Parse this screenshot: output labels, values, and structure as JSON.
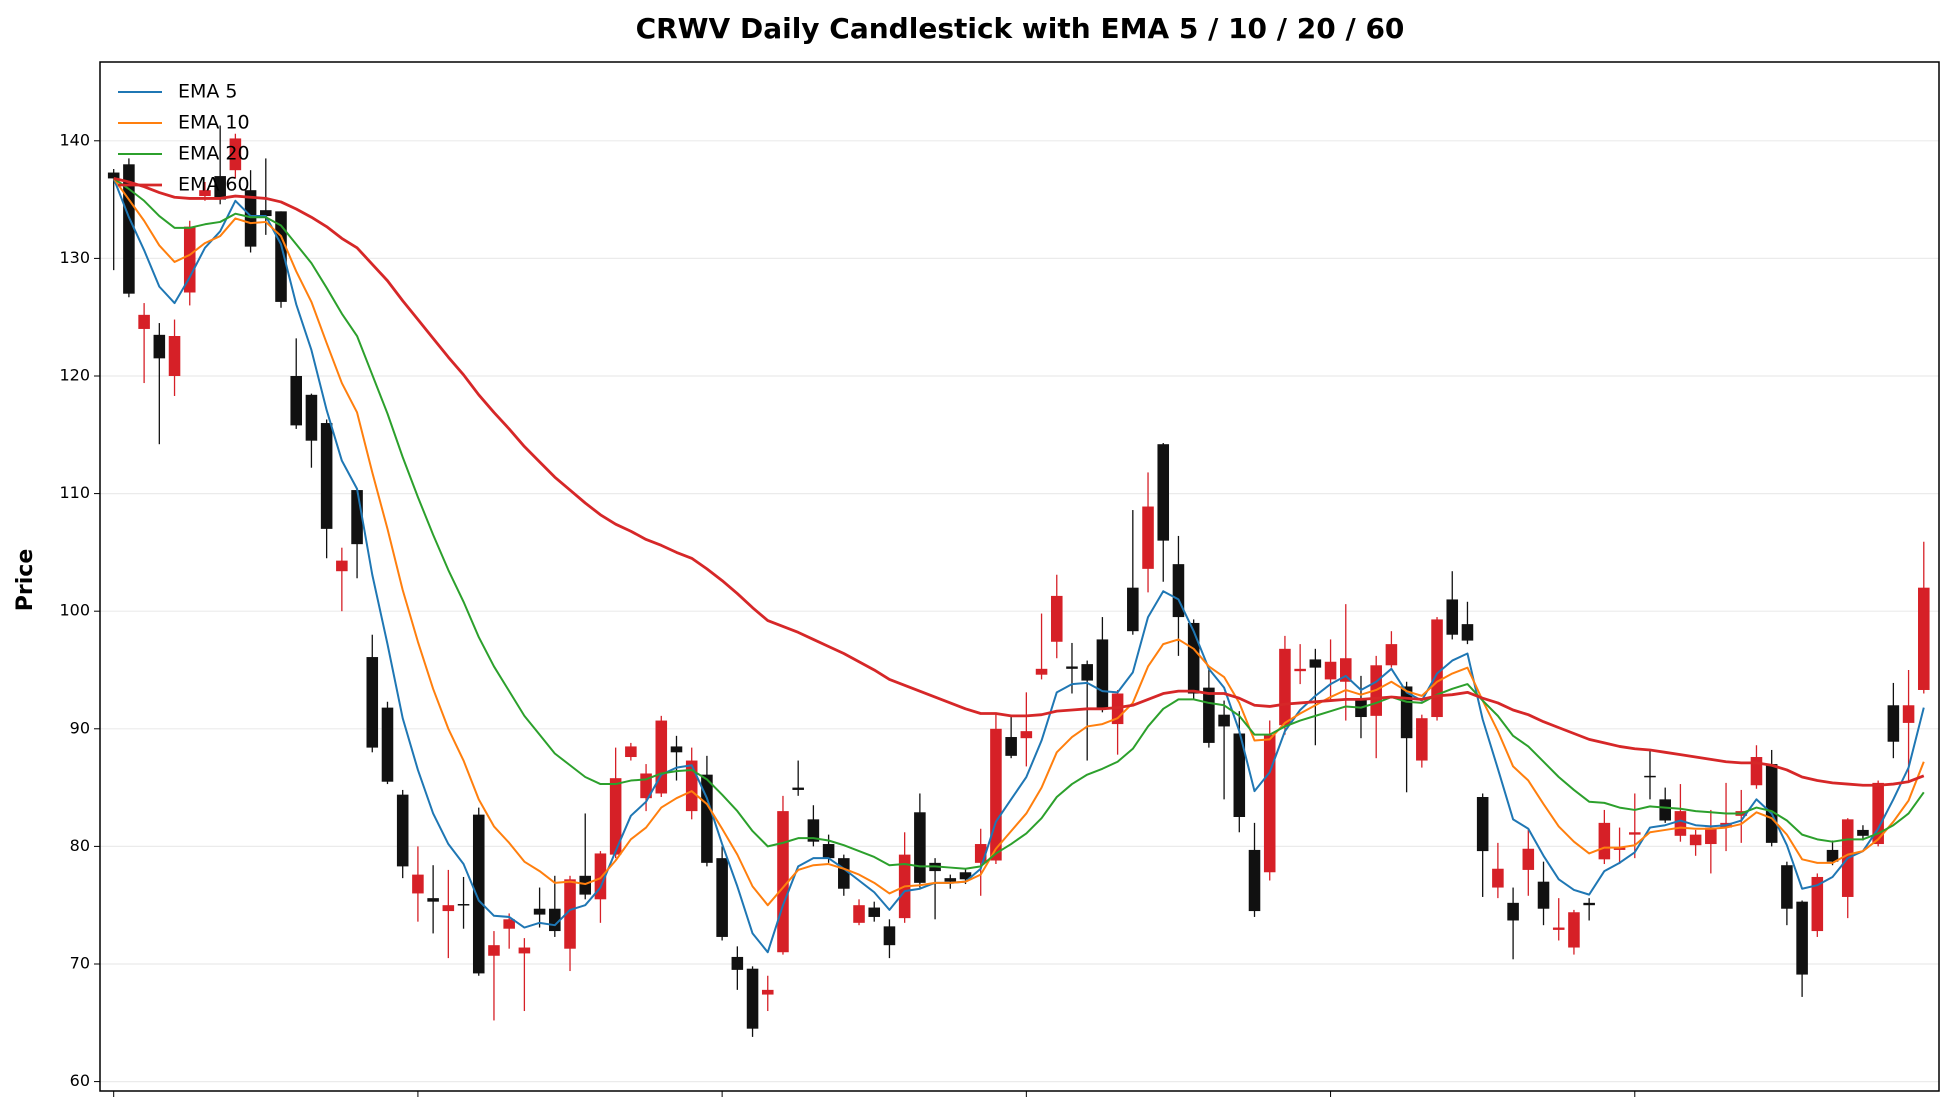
{
  "chart_data": {
    "type": "candlestick",
    "title": "CRWV Daily Candlestick with EMA 5 / 10 / 20 / 60",
    "y_label": "Price",
    "x": [
      0,
      1,
      2,
      3,
      4,
      5,
      6,
      7,
      8,
      9,
      10,
      11,
      12,
      13,
      14,
      15,
      16,
      17,
      18,
      19,
      20,
      21,
      22,
      23,
      24,
      25,
      26,
      27,
      28,
      29,
      30,
      31,
      32,
      33,
      34,
      35,
      36,
      37,
      38,
      39,
      40,
      41,
      42,
      43,
      44,
      45,
      46,
      47,
      48,
      49,
      50,
      51,
      52,
      53,
      54,
      55,
      56,
      57,
      58,
      59,
      60,
      61,
      62,
      63,
      64,
      65,
      66,
      67,
      68,
      69,
      70,
      71,
      72,
      73,
      74,
      75,
      76,
      77,
      78,
      79,
      80,
      81,
      82,
      83,
      84,
      85,
      86,
      87,
      88,
      89,
      90,
      91,
      92,
      93,
      94,
      95,
      96,
      97,
      98,
      99,
      100,
      101,
      102,
      103,
      104,
      105,
      106,
      107,
      108,
      109,
      110,
      111,
      112,
      113,
      114,
      115,
      116,
      117,
      118,
      119
    ],
    "open": [
      137.3,
      138,
      124,
      123.5,
      120,
      127.1,
      135.3,
      137,
      137.5,
      135.8,
      134.1,
      134,
      120,
      118.4,
      116,
      103.4,
      110.3,
      96.1,
      91.8,
      84.4,
      76,
      75.6,
      74.5,
      75.1,
      82.7,
      70.7,
      73,
      70.9,
      74.7,
      74.7,
      71.3,
      77.5,
      75.5,
      79.3,
      87.6,
      84.1,
      84.5,
      88.5,
      83,
      86.1,
      79,
      70.6,
      69.6,
      67.4,
      71,
      85,
      82.3,
      80.2,
      79,
      73.5,
      74.8,
      73.2,
      73.9,
      82.9,
      78.6,
      77.3,
      77.8,
      78.6,
      78.8,
      89.3,
      89.2,
      94.6,
      97.4,
      95.3,
      95.5,
      97.6,
      90.4,
      102,
      103.6,
      114.2,
      104,
      99,
      93.5,
      91.2,
      89.6,
      79.7,
      77.8,
      90.3,
      94.9,
      95.9,
      94.2,
      94,
      92.6,
      91.1,
      95.4,
      93.6,
      87.3,
      91,
      101,
      98.9,
      84.2,
      76.5,
      75.2,
      78,
      77,
      72.9,
      71.4,
      75.2,
      78.9,
      79.7,
      81,
      86,
      84,
      80.9,
      80.1,
      80.2,
      81.6,
      82.6,
      85.2,
      87,
      78.4,
      75.3,
      72.8,
      79.7,
      75.7,
      81.4,
      80.2,
      92,
      90.5,
      93.3
    ],
    "high": [
      137.6,
      138.5,
      126.2,
      124.5,
      124.8,
      133.2,
      136.5,
      141.3,
      140.6,
      137.5,
      138.5,
      134,
      123.2,
      118.5,
      116.3,
      105.4,
      110.4,
      98,
      92.3,
      84.8,
      80,
      78.4,
      78,
      77.4,
      83.3,
      72.8,
      74.3,
      72.2,
      76.5,
      77.5,
      77.5,
      82.8,
      79.6,
      88.4,
      88.8,
      87,
      91.1,
      89.4,
      88.4,
      87.7,
      80,
      71.5,
      69.8,
      69,
      84.3,
      87.3,
      83.5,
      81,
      79.3,
      75.5,
      75.3,
      73.8,
      81.2,
      84.5,
      79,
      77.6,
      78.1,
      81.5,
      91.3,
      91,
      93.1,
      99.8,
      103.1,
      97.3,
      95.8,
      99.5,
      93.3,
      108.6,
      111.8,
      114.3,
      106.4,
      99.3,
      95,
      92.4,
      91.5,
      82,
      90.7,
      97.9,
      97.2,
      96.8,
      97.6,
      100.6,
      94.5,
      96.2,
      98.3,
      94,
      91.2,
      99.5,
      103.4,
      100.8,
      84.5,
      80.3,
      76.5,
      81.4,
      78.7,
      75.6,
      74.6,
      75.6,
      83.1,
      81.6,
      84.5,
      88.2,
      85,
      85.3,
      81.4,
      83.1,
      85.4,
      84.8,
      88.6,
      88.2,
      78.7,
      75.4,
      77.7,
      80.5,
      82.4,
      81.8,
      85.6,
      93.9,
      95,
      105.9
    ],
    "low": [
      129,
      126.7,
      119.4,
      114.2,
      118.3,
      126,
      134.9,
      134.6,
      136.8,
      130.5,
      132,
      125.8,
      115.5,
      112.2,
      104.5,
      100,
      102.8,
      88,
      85.3,
      77.3,
      73.6,
      72.6,
      70.5,
      73,
      69,
      65.2,
      71.3,
      66,
      73.1,
      72.3,
      69.4,
      75.5,
      73.5,
      79,
      87.3,
      83,
      84.2,
      85.6,
      82.3,
      78.3,
      72,
      67.8,
      63.8,
      66,
      70.8,
      84.3,
      80,
      78.6,
      75.8,
      73.3,
      73.6,
      70.5,
      73.5,
      76.5,
      73.8,
      76.4,
      76.8,
      75.8,
      78.5,
      87.5,
      86.8,
      94.2,
      96,
      93,
      87.3,
      91.4,
      87.8,
      98,
      101.6,
      102.5,
      96.2,
      92.5,
      88.4,
      84,
      81.2,
      74,
      77.1,
      89.5,
      93.8,
      88.6,
      92.5,
      90.7,
      89.2,
      87.5,
      95.2,
      84.6,
      86.7,
      90.7,
      97.6,
      97.2,
      75.7,
      75.6,
      70.4,
      75.8,
      73.3,
      72,
      70.8,
      73.7,
      78.5,
      78.5,
      79,
      84,
      82,
      80.4,
      79.2,
      77.7,
      79.6,
      80.3,
      84.9,
      80,
      73.3,
      67.2,
      72.3,
      78.4,
      73.9,
      80.5,
      80,
      87.5,
      85.5,
      93
    ],
    "close": [
      136.8,
      127,
      125.2,
      121.5,
      123.4,
      132.7,
      135.8,
      135,
      140.2,
      131,
      133.6,
      126.3,
      115.8,
      114.5,
      107,
      104.3,
      105.7,
      88.4,
      85.5,
      78.3,
      77.6,
      75.3,
      75,
      75,
      69.2,
      71.6,
      73.8,
      71.4,
      74.2,
      72.8,
      77.2,
      75.9,
      79.4,
      85.8,
      88.5,
      86.2,
      90.7,
      88,
      87.3,
      78.6,
      72.3,
      69.5,
      64.5,
      67.8,
      83,
      84.8,
      80.4,
      79,
      76.4,
      75,
      74,
      71.6,
      79.3,
      76.9,
      77.9,
      77,
      77.2,
      80.2,
      90,
      87.7,
      89.8,
      95.1,
      101.3,
      95.1,
      94.1,
      91.7,
      93,
      98.3,
      108.9,
      106,
      99.5,
      93,
      88.8,
      90.2,
      82.5,
      74.5,
      89.5,
      96.8,
      95.1,
      95.2,
      95.7,
      96,
      91,
      95.4,
      97.2,
      89.2,
      90.9,
      99.3,
      98,
      97.5,
      79.6,
      78.1,
      73.7,
      79.8,
      74.7,
      73.1,
      74.4,
      75,
      82,
      79.9,
      81.2,
      85.9,
      82.2,
      83,
      81,
      81.6,
      82,
      83,
      87.6,
      80.3,
      74.7,
      69.1,
      77.4,
      78.7,
      82.3,
      80.9,
      85.4,
      88.9,
      92,
      102
    ],
    "up_color": "#d62027",
    "down_color": "#111111",
    "series": [
      {
        "name": "EMA 5",
        "color": "#1f77b4",
        "values": [
          136.8,
          133.5,
          130.7,
          127.6,
          126.2,
          128.4,
          130.9,
          132.3,
          134.9,
          133.6,
          133.6,
          131.2,
          126.1,
          122.2,
          117.1,
          112.8,
          110.4,
          103.1,
          97.2,
          90.9,
          86.5,
          82.8,
          80.2,
          78.5,
          75.4,
          74.1,
          74,
          73.1,
          73.5,
          73.3,
          74.6,
          75,
          76.5,
          79.6,
          82.6,
          83.8,
          86.1,
          86.7,
          86.9,
          84.1,
          80.2,
          76.6,
          72.6,
          71,
          75,
          78.3,
          79,
          79,
          78.1,
          77.1,
          76.1,
          74.6,
          76.2,
          76.4,
          76.9,
          76.9,
          77,
          78.1,
          82.1,
          84,
          85.9,
          89,
          93.1,
          93.8,
          93.9,
          93.2,
          93.1,
          94.8,
          99.5,
          101.7,
          101,
          98.3,
          95.1,
          93.5,
          89.8,
          84.7,
          86.3,
          89.8,
          91.6,
          92.8,
          93.8,
          94.5,
          93.3,
          94,
          95.1,
          93.1,
          92.4,
          94.7,
          95.8,
          96.4,
          90.8,
          86.6,
          82.3,
          81.5,
          79.2,
          77.2,
          76.3,
          75.9,
          77.9,
          78.6,
          79.5,
          81.6,
          81.8,
          82.2,
          81.8,
          81.7,
          81.8,
          82.2,
          84,
          82.8,
          80.1,
          76.4,
          76.7,
          77.4,
          79,
          79.6,
          81.5,
          84,
          86.7,
          91.8
        ]
      },
      {
        "name": "EMA 10",
        "color": "#ff7f0e",
        "values": [
          136.8,
          135,
          133.2,
          131.1,
          129.7,
          130.3,
          131.3,
          131.9,
          133.4,
          133,
          133.1,
          131.9,
          128.9,
          126.3,
          122.8,
          119.4,
          116.9,
          111.8,
          107,
          101.8,
          97.4,
          93.4,
          90,
          87.3,
          84,
          81.7,
          80.3,
          78.7,
          77.9,
          76.9,
          77,
          76.8,
          77.3,
          78.8,
          80.6,
          81.6,
          83.3,
          84.1,
          84.7,
          83.6,
          81.5,
          79.3,
          76.6,
          75,
          76.5,
          78,
          78.4,
          78.5,
          78.1,
          77.6,
          76.9,
          76,
          76.6,
          76.7,
          76.9,
          76.9,
          77,
          77.6,
          79.8,
          81.3,
          82.8,
          85,
          88,
          89.3,
          90.2,
          90.4,
          90.9,
          92.2,
          95.3,
          97.2,
          97.6,
          96.8,
          95.3,
          94.4,
          92.2,
          89,
          89.1,
          90.5,
          91.3,
          92,
          92.7,
          93.3,
          92.9,
          93.3,
          94,
          93.2,
          92.8,
          94,
          94.7,
          95.2,
          92.4,
          89.8,
          86.8,
          85.6,
          83.6,
          81.7,
          80.4,
          79.4,
          79.9,
          79.9,
          80.1,
          81.2,
          81.4,
          81.6,
          81.5,
          81.5,
          81.6,
          81.9,
          82.9,
          82.4,
          81,
          78.9,
          78.6,
          78.6,
          79.3,
          79.6,
          80.6,
          82.1,
          83.9,
          87.2
        ]
      },
      {
        "name": "EMA 20",
        "color": "#2ca02c",
        "values": [
          136.8,
          135.9,
          134.9,
          133.6,
          132.6,
          132.6,
          132.9,
          133.1,
          133.8,
          133.5,
          133.5,
          132.8,
          131.2,
          129.6,
          127.5,
          125.3,
          123.4,
          120.1,
          116.8,
          113.1,
          109.7,
          106.5,
          103.5,
          100.8,
          97.8,
          95.3,
          93.2,
          91.1,
          89.5,
          87.9,
          86.9,
          85.9,
          85.3,
          85.3,
          85.6,
          85.7,
          86.2,
          86.4,
          86.5,
          85.7,
          84.4,
          83,
          81.3,
          80,
          80.3,
          80.7,
          80.7,
          80.5,
          80.1,
          79.6,
          79.1,
          78.4,
          78.5,
          78.3,
          78.3,
          78.2,
          78.1,
          78.3,
          79.4,
          80.2,
          81.1,
          82.4,
          84.2,
          85.3,
          86.1,
          86.6,
          87.2,
          88.3,
          90.2,
          91.7,
          92.5,
          92.5,
          92.2,
          92,
          91.1,
          89.5,
          89.5,
          90.2,
          90.7,
          91.1,
          91.5,
          91.9,
          91.8,
          92.2,
          92.7,
          92.3,
          92.2,
          92.9,
          93.4,
          93.8,
          92.4,
          91.1,
          89.4,
          88.5,
          87.2,
          85.9,
          84.8,
          83.8,
          83.7,
          83.3,
          83.1,
          83.4,
          83.3,
          83.2,
          83,
          82.9,
          82.8,
          82.8,
          83.3,
          83,
          82.2,
          81,
          80.6,
          80.4,
          80.6,
          80.6,
          81.1,
          81.8,
          82.8,
          84.6
        ]
      },
      {
        "name": "EMA 60",
        "color": "#d62728",
        "values": [
          136.8,
          136.5,
          136.1,
          135.6,
          135.2,
          135.1,
          135.1,
          135.1,
          135.3,
          135.2,
          135.1,
          134.8,
          134.2,
          133.5,
          132.7,
          131.7,
          130.9,
          129.5,
          128.1,
          126.4,
          124.8,
          123.2,
          121.6,
          120.1,
          118.4,
          116.9,
          115.5,
          114,
          112.7,
          111.4,
          110.3,
          109.2,
          108.2,
          107.4,
          106.8,
          106.1,
          105.6,
          105,
          104.5,
          103.6,
          102.6,
          101.5,
          100.3,
          99.2,
          98.7,
          98.2,
          97.6,
          97,
          96.4,
          95.7,
          95,
          94.2,
          93.7,
          93.2,
          92.7,
          92.2,
          91.7,
          91.3,
          91.3,
          91.1,
          91.1,
          91.2,
          91.5,
          91.6,
          91.7,
          91.7,
          91.8,
          92,
          92.5,
          93,
          93.2,
          93.2,
          93,
          93,
          92.6,
          92,
          91.9,
          92.1,
          92.2,
          92.3,
          92.4,
          92.5,
          92.5,
          92.6,
          92.7,
          92.6,
          92.5,
          92.8,
          92.9,
          93.1,
          92.6,
          92.2,
          91.6,
          91.2,
          90.6,
          90.1,
          89.6,
          89.1,
          88.8,
          88.5,
          88.3,
          88.2,
          88,
          87.8,
          87.6,
          87.4,
          87.2,
          87.1,
          87.1,
          86.9,
          86.5,
          85.9,
          85.6,
          85.4,
          85.3,
          85.2,
          85.2,
          85.3,
          85.5,
          86
        ]
      }
    ],
    "xlim": [
      -0.9,
      120
    ],
    "xticks": [
      0,
      20,
      40,
      60,
      80,
      100
    ],
    "ylim": [
      59.2,
      146.7
    ],
    "yticks": [
      60,
      70,
      80,
      90,
      100,
      110,
      120,
      130,
      140
    ],
    "grid": true,
    "legend": "upper left"
  }
}
